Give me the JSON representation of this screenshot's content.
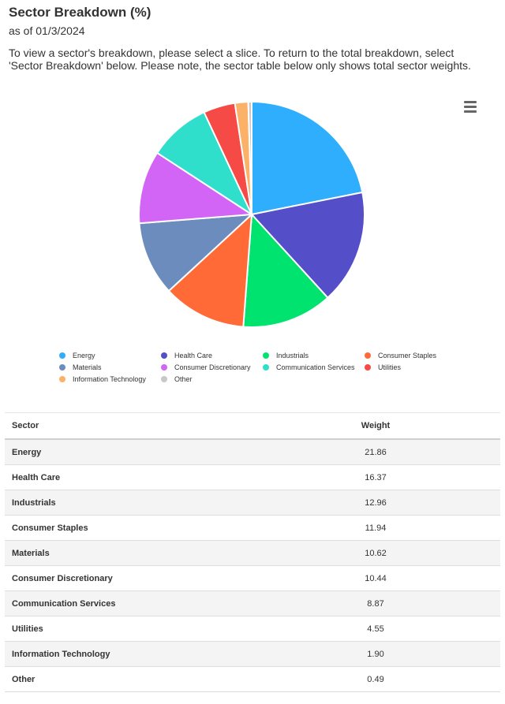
{
  "header": {
    "title": "Sector Breakdown (%)",
    "as_of": "as of 01/3/2024",
    "instructions": "To view a sector's breakdown, please select a slice. To return to the total breakdown, select 'Sector Breakdown' below. Please note, the sector table below only shows total sector weights."
  },
  "menu": {
    "icon": "hamburger-menu-icon"
  },
  "chart_data": {
    "type": "pie",
    "title": "",
    "start_angle_degrees": 0,
    "direction": "clockwise",
    "slices": [
      {
        "label": "Energy",
        "value": 21.86,
        "color": "#2eaefc"
      },
      {
        "label": "Health Care",
        "value": 16.37,
        "color": "#544ec8"
      },
      {
        "label": "Industrials",
        "value": 12.96,
        "color": "#00e36f"
      },
      {
        "label": "Consumer Staples",
        "value": 11.94,
        "color": "#ff6a36"
      },
      {
        "label": "Materials",
        "value": 10.62,
        "color": "#6b8cbc"
      },
      {
        "label": "Consumer Discretionary",
        "value": 10.44,
        "color": "#d265f6"
      },
      {
        "label": "Communication Services",
        "value": 8.87,
        "color": "#30dfcb"
      },
      {
        "label": "Utilities",
        "value": 4.55,
        "color": "#f54a45"
      },
      {
        "label": "Information Technology",
        "value": 1.9,
        "color": "#fcb169"
      },
      {
        "label": "Other",
        "value": 0.49,
        "color": "#c8c8c8"
      }
    ],
    "legend": {
      "placement": "bottom",
      "columns": 4,
      "items": [
        {
          "label": "Energy",
          "color": "#2eaefc"
        },
        {
          "label": "Health Care",
          "color": "#544ec8"
        },
        {
          "label": "Industrials",
          "color": "#00e36f"
        },
        {
          "label": "Consumer Staples",
          "color": "#ff6a36"
        },
        {
          "label": "Materials",
          "color": "#6b8cbc"
        },
        {
          "label": "Consumer Discretionary",
          "color": "#d265f6"
        },
        {
          "label": "Communication Services",
          "color": "#30dfcb"
        },
        {
          "label": "Utilities",
          "color": "#f54a45"
        },
        {
          "label": "Information Technology",
          "color": "#fcb169"
        },
        {
          "label": "Other",
          "color": "#c8c8c8"
        }
      ]
    }
  },
  "table": {
    "headers": {
      "sector": "Sector",
      "weight": "Weight"
    },
    "rows": [
      {
        "sector": "Energy",
        "weight": "21.86"
      },
      {
        "sector": "Health Care",
        "weight": "16.37"
      },
      {
        "sector": "Industrials",
        "weight": "12.96"
      },
      {
        "sector": "Consumer Staples",
        "weight": "11.94"
      },
      {
        "sector": "Materials",
        "weight": "10.62"
      },
      {
        "sector": "Consumer Discretionary",
        "weight": "10.44"
      },
      {
        "sector": "Communication Services",
        "weight": "8.87"
      },
      {
        "sector": "Utilities",
        "weight": "4.55"
      },
      {
        "sector": "Information Technology",
        "weight": "1.90"
      },
      {
        "sector": "Other",
        "weight": "0.49"
      }
    ]
  }
}
